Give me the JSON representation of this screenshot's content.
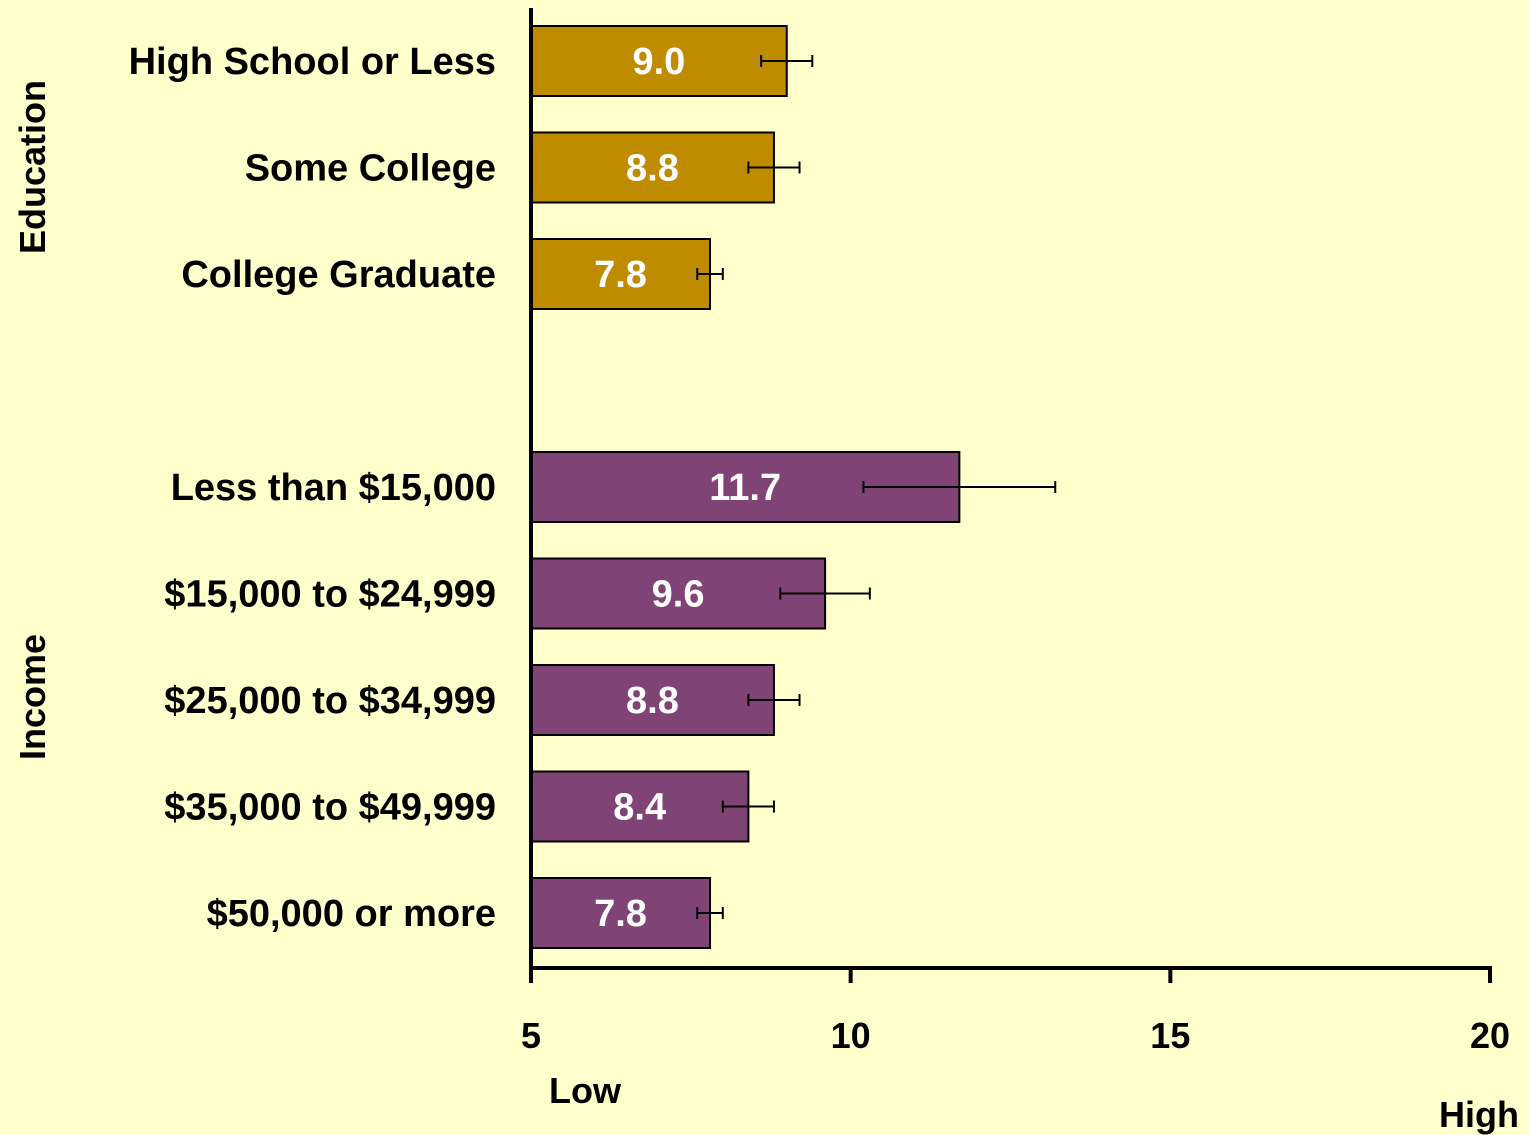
{
  "chart_data": {
    "type": "bar",
    "orientation": "horizontal",
    "xlim": [
      5,
      20
    ],
    "x_ticks": [
      "5",
      "10",
      "15",
      "20"
    ],
    "x_tick_values": [
      5,
      10,
      15,
      20
    ],
    "low_label": "Low",
    "high_label": "High",
    "grid": false,
    "groups": [
      {
        "name": "Education",
        "color": "#bf8c00",
        "categories": [
          "High School or Less",
          "Some College",
          "College Graduate"
        ],
        "values": [
          9.0,
          8.8,
          7.8
        ],
        "value_labels": [
          "9.0",
          "8.8",
          "7.8"
        ],
        "error_low": [
          8.6,
          8.4,
          7.6
        ],
        "error_high": [
          9.4,
          9.2,
          8.0
        ]
      },
      {
        "name": "Income",
        "color": "#7f4475",
        "categories": [
          "Less than $15,000",
          "$15,000 to $24,999",
          "$25,000 to $34,999",
          "$35,000 to $49,999",
          "$50,000 or more"
        ],
        "values": [
          11.7,
          9.6,
          8.8,
          8.4,
          7.8
        ],
        "value_labels": [
          "11.7",
          "9.6",
          "8.8",
          "8.4",
          "7.8"
        ],
        "error_low": [
          10.2,
          8.9,
          8.4,
          8.0,
          7.6
        ],
        "error_high": [
          13.2,
          10.3,
          9.2,
          8.8,
          8.0
        ]
      }
    ]
  }
}
